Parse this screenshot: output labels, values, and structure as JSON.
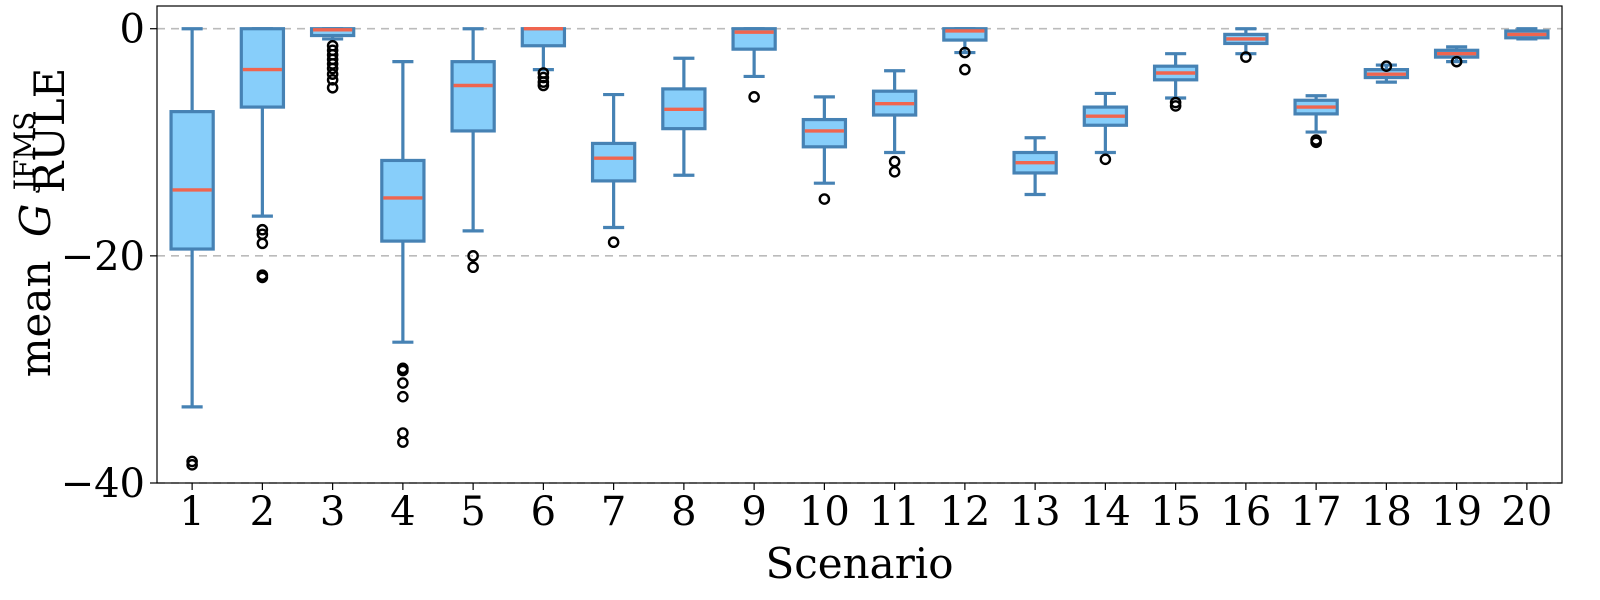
{
  "chart_data": {
    "type": "box",
    "title": "",
    "xlabel": "Scenario",
    "ylabel": {
      "prefix": "mean",
      "symbol": "G",
      "superscript": "JFMS",
      "subscript": "RULE"
    },
    "ylim": [
      -40,
      2
    ],
    "yticks": [
      0,
      -20,
      -40
    ],
    "ytick_labels": [
      "0",
      "−20",
      "−40"
    ],
    "grid": "horizontal-dashed",
    "colors": {
      "box_fill": "#87CEFA",
      "box_edge": "#4682B4",
      "median": "#F0654F",
      "grid": "#bbbbbb"
    },
    "categories": [
      "1",
      "2",
      "3",
      "4",
      "5",
      "6",
      "7",
      "8",
      "9",
      "10",
      "11",
      "12",
      "13",
      "14",
      "15",
      "16",
      "17",
      "18",
      "19",
      "20"
    ],
    "boxes": [
      {
        "whisker_low": -33.3,
        "q1": -19.4,
        "median": -14.2,
        "q3": -7.3,
        "whisker_high": 0.0,
        "outliers": [
          -38.1,
          -38.4
        ]
      },
      {
        "whisker_low": -16.5,
        "q1": -6.9,
        "median": -3.6,
        "q3": 0.0,
        "whisker_high": 0.0,
        "outliers": [
          -17.7,
          -18.1,
          -18.9,
          -21.7,
          -21.9
        ]
      },
      {
        "whisker_low": -0.9,
        "q1": -0.6,
        "median": -0.1,
        "q3": 0.0,
        "whisker_high": 0.0,
        "outliers": [
          -1.5,
          -1.9,
          -2.3,
          -2.7,
          -3.1,
          -3.5,
          -4.0,
          -4.5,
          -5.2
        ]
      },
      {
        "whisker_low": -27.6,
        "q1": -18.7,
        "median": -14.9,
        "q3": -11.6,
        "whisker_high": -2.9,
        "outliers": [
          -29.9,
          -30.1,
          -31.2,
          -32.4,
          -35.6,
          -36.4
        ]
      },
      {
        "whisker_low": -17.8,
        "q1": -9.0,
        "median": -5.0,
        "q3": -2.9,
        "whisker_high": 0.0,
        "outliers": [
          -20.0,
          -21.0
        ]
      },
      {
        "whisker_low": -3.6,
        "q1": -1.5,
        "median": 0.0,
        "q3": 0.0,
        "whisker_high": 0.0,
        "outliers": [
          -3.9,
          -4.3,
          -4.7,
          -5.0
        ]
      },
      {
        "whisker_low": -17.5,
        "q1": -13.4,
        "median": -11.4,
        "q3": -10.1,
        "whisker_high": -5.8,
        "outliers": [
          -18.8
        ]
      },
      {
        "whisker_low": -12.9,
        "q1": -8.8,
        "median": -7.1,
        "q3": -5.3,
        "whisker_high": -2.6,
        "outliers": []
      },
      {
        "whisker_low": -4.2,
        "q1": -1.8,
        "median": -0.3,
        "q3": 0.0,
        "whisker_high": 0.0,
        "outliers": [
          -6.0
        ]
      },
      {
        "whisker_low": -13.6,
        "q1": -10.4,
        "median": -9.0,
        "q3": -8.0,
        "whisker_high": -6.0,
        "outliers": [
          -15.0
        ]
      },
      {
        "whisker_low": -10.9,
        "q1": -7.6,
        "median": -6.6,
        "q3": -5.5,
        "whisker_high": -3.7,
        "outliers": [
          -11.7,
          -12.6
        ]
      },
      {
        "whisker_low": -2.1,
        "q1": -1.0,
        "median": -0.2,
        "q3": 0.0,
        "whisker_high": 0.0,
        "outliers": [
          -2.1,
          -3.6
        ]
      },
      {
        "whisker_low": -14.6,
        "q1": -12.7,
        "median": -11.8,
        "q3": -10.9,
        "whisker_high": -9.6,
        "outliers": []
      },
      {
        "whisker_low": -10.9,
        "q1": -8.5,
        "median": -7.7,
        "q3": -6.9,
        "whisker_high": -5.7,
        "outliers": [
          -11.5
        ]
      },
      {
        "whisker_low": -6.1,
        "q1": -4.5,
        "median": -3.9,
        "q3": -3.3,
        "whisker_high": -2.2,
        "outliers": [
          -6.5,
          -6.8
        ]
      },
      {
        "whisker_low": -2.2,
        "q1": -1.3,
        "median": -0.9,
        "q3": -0.5,
        "whisker_high": 0.0,
        "outliers": [
          -2.5
        ]
      },
      {
        "whisker_low": -9.1,
        "q1": -7.5,
        "median": -6.9,
        "q3": -6.3,
        "whisker_high": -5.9,
        "outliers": [
          -9.8,
          -10.0
        ]
      },
      {
        "whisker_low": -4.7,
        "q1": -4.3,
        "median": -4.0,
        "q3": -3.6,
        "whisker_high": -3.2,
        "outliers": [
          -3.3
        ]
      },
      {
        "whisker_low": -2.9,
        "q1": -2.5,
        "median": -2.2,
        "q3": -1.9,
        "whisker_high": -1.6,
        "outliers": [
          -2.9
        ]
      },
      {
        "whisker_low": -0.9,
        "q1": -0.8,
        "median": -0.5,
        "q3": -0.2,
        "whisker_high": 0.0,
        "outliers": []
      }
    ]
  }
}
